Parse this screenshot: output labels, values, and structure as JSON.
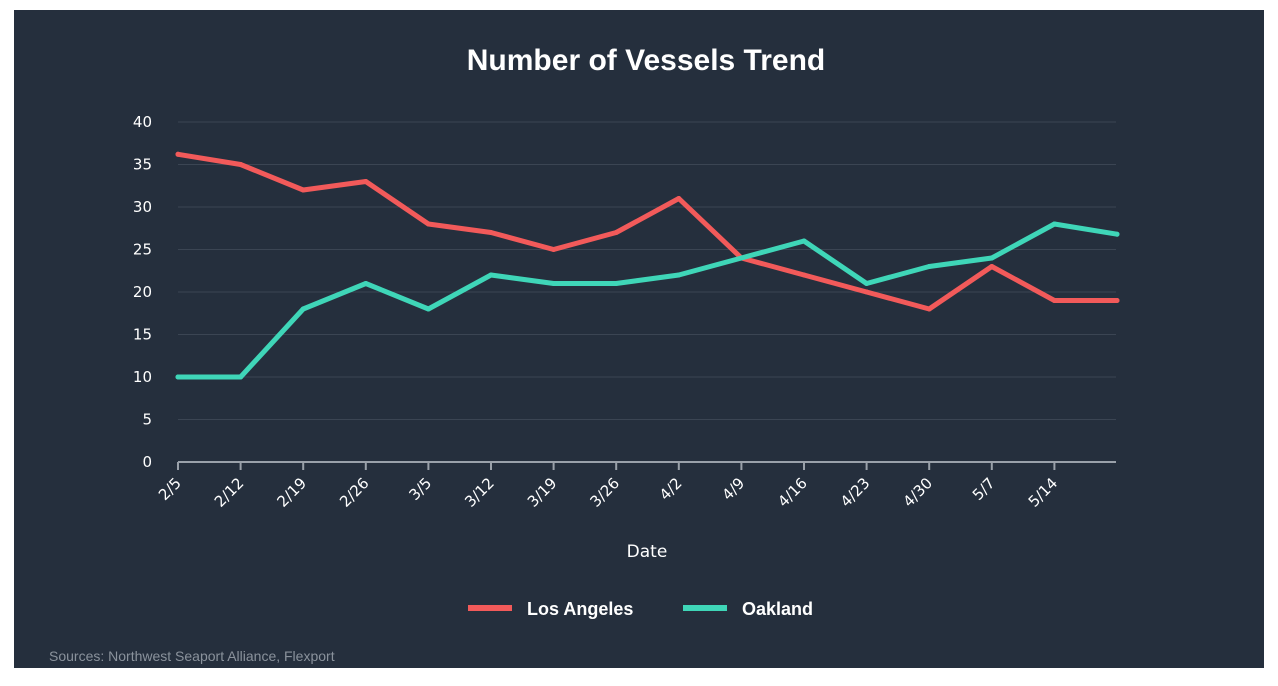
{
  "chart_data": {
    "type": "line",
    "title": "Number of Vessels Trend",
    "xlabel": "Date",
    "ylabel": "",
    "ylim": [
      0,
      40
    ],
    "yticks": [
      0,
      5,
      10,
      15,
      20,
      25,
      30,
      35,
      40
    ],
    "categories": [
      "2/5",
      "2/12",
      "2/19",
      "2/26",
      "3/5",
      "3/12",
      "3/19",
      "3/26",
      "4/2",
      "4/9",
      "4/16",
      "4/23",
      "4/30",
      "5/7",
      "5/14",
      ""
    ],
    "grid": true,
    "legend_position": "bottom-center",
    "series": [
      {
        "name": "Los Angeles",
        "color": "#f25a5a",
        "values": [
          36.2,
          35,
          32,
          33,
          28,
          27,
          25,
          27,
          31,
          24,
          22,
          20,
          18,
          23,
          19,
          19
        ]
      },
      {
        "name": "Oakland",
        "color": "#3fd6b8",
        "values": [
          10,
          10,
          18,
          21,
          18,
          22,
          21,
          21,
          22,
          24,
          26,
          21,
          23,
          24,
          28,
          26.8
        ]
      }
    ]
  },
  "source_note": "Sources: Northwest Seaport Alliance, Flexport"
}
